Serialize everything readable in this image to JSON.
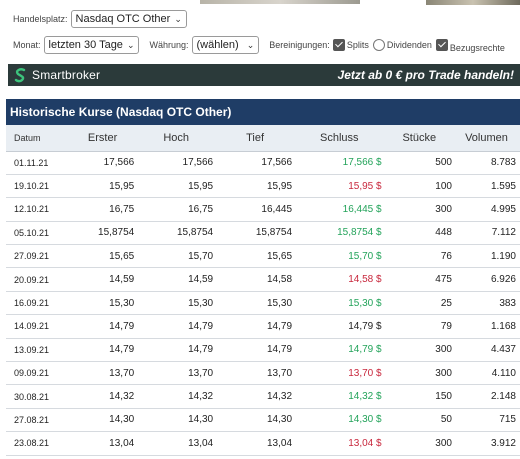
{
  "filters": {
    "handelsplatz_label": "Handelsplatz:",
    "handelsplatz_value": "Nasdaq OTC Other",
    "monat_label": "Monat:",
    "monat_value": "letzten 30 Tage",
    "waehrung_label": "Währung:",
    "waehrung_value": "(wählen)",
    "bereinigungen_label": "Bereinigungen:",
    "splits_label": "Splits",
    "splits_checked": true,
    "dividenden_label": "Dividenden",
    "dividenden_checked": false,
    "bezugsrechte_label": "Bezugsrechte",
    "bezugsrechte_checked": true
  },
  "banner": {
    "brand": "Smartbroker",
    "cta": "Jetzt ab 0 € pro Trade handeln!",
    "colors": {
      "background": "#2b3a3a",
      "logo_green": "#3cc47c"
    }
  },
  "table": {
    "title": "Historische Kurse (Nasdaq OTC Other)",
    "columns": [
      "Datum",
      "Erster",
      "Hoch",
      "Tief",
      "Schluss",
      "Stücke",
      "Volumen"
    ],
    "rows": [
      {
        "datum": "01.11.21",
        "erster": "17,566",
        "hoch": "17,566",
        "tief": "17,566",
        "schluss": "17,566 $",
        "trend": "up",
        "stuecke": "500",
        "volumen": "8.783"
      },
      {
        "datum": "19.10.21",
        "erster": "15,95",
        "hoch": "15,95",
        "tief": "15,95",
        "schluss": "15,95 $",
        "trend": "down",
        "stuecke": "100",
        "volumen": "1.595"
      },
      {
        "datum": "12.10.21",
        "erster": "16,75",
        "hoch": "16,75",
        "tief": "16,445",
        "schluss": "16,445 $",
        "trend": "up",
        "stuecke": "300",
        "volumen": "4.995"
      },
      {
        "datum": "05.10.21",
        "erster": "15,8754",
        "hoch": "15,8754",
        "tief": "15,8754",
        "schluss": "15,8754 $",
        "trend": "up",
        "stuecke": "448",
        "volumen": "7.112"
      },
      {
        "datum": "27.09.21",
        "erster": "15,65",
        "hoch": "15,70",
        "tief": "15,65",
        "schluss": "15,70 $",
        "trend": "up",
        "stuecke": "76",
        "volumen": "1.190"
      },
      {
        "datum": "20.09.21",
        "erster": "14,59",
        "hoch": "14,59",
        "tief": "14,58",
        "schluss": "14,58 $",
        "trend": "down",
        "stuecke": "475",
        "volumen": "6.926"
      },
      {
        "datum": "16.09.21",
        "erster": "15,30",
        "hoch": "15,30",
        "tief": "15,30",
        "schluss": "15,30 $",
        "trend": "up",
        "stuecke": "25",
        "volumen": "383"
      },
      {
        "datum": "14.09.21",
        "erster": "14,79",
        "hoch": "14,79",
        "tief": "14,79",
        "schluss": "14,79 $",
        "trend": "neutral",
        "stuecke": "79",
        "volumen": "1.168"
      },
      {
        "datum": "13.09.21",
        "erster": "14,79",
        "hoch": "14,79",
        "tief": "14,79",
        "schluss": "14,79 $",
        "trend": "up",
        "stuecke": "300",
        "volumen": "4.437"
      },
      {
        "datum": "09.09.21",
        "erster": "13,70",
        "hoch": "13,70",
        "tief": "13,70",
        "schluss": "13,70 $",
        "trend": "down",
        "stuecke": "300",
        "volumen": "4.110"
      },
      {
        "datum": "30.08.21",
        "erster": "14,32",
        "hoch": "14,32",
        "tief": "14,32",
        "schluss": "14,32 $",
        "trend": "up",
        "stuecke": "150",
        "volumen": "2.148"
      },
      {
        "datum": "27.08.21",
        "erster": "14,30",
        "hoch": "14,30",
        "tief": "14,30",
        "schluss": "14,30 $",
        "trend": "up",
        "stuecke": "50",
        "volumen": "715"
      },
      {
        "datum": "23.08.21",
        "erster": "13,04",
        "hoch": "13,04",
        "tief": "13,04",
        "schluss": "13,04 $",
        "trend": "down",
        "stuecke": "300",
        "volumen": "3.912"
      }
    ]
  },
  "colors": {
    "header_bg": "#1f3d66",
    "up": "#23a35a",
    "down": "#c8283d"
  }
}
